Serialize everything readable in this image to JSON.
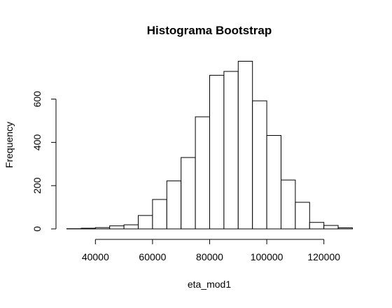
{
  "chart_data": {
    "type": "bar",
    "title": "Histograma Bootstrap",
    "xlabel": "eta_mod1",
    "ylabel": "Frequency",
    "bins": [
      {
        "start": 30000,
        "end": 35000,
        "value": 1
      },
      {
        "start": 35000,
        "end": 40000,
        "value": 3
      },
      {
        "start": 40000,
        "end": 45000,
        "value": 6
      },
      {
        "start": 45000,
        "end": 50000,
        "value": 14
      },
      {
        "start": 50000,
        "end": 55000,
        "value": 19
      },
      {
        "start": 55000,
        "end": 60000,
        "value": 62
      },
      {
        "start": 60000,
        "end": 65000,
        "value": 136
      },
      {
        "start": 65000,
        "end": 70000,
        "value": 222
      },
      {
        "start": 70000,
        "end": 75000,
        "value": 330
      },
      {
        "start": 75000,
        "end": 80000,
        "value": 518
      },
      {
        "start": 80000,
        "end": 85000,
        "value": 710
      },
      {
        "start": 85000,
        "end": 90000,
        "value": 728
      },
      {
        "start": 90000,
        "end": 95000,
        "value": 775
      },
      {
        "start": 95000,
        "end": 100000,
        "value": 592
      },
      {
        "start": 100000,
        "end": 105000,
        "value": 432
      },
      {
        "start": 105000,
        "end": 110000,
        "value": 226
      },
      {
        "start": 110000,
        "end": 115000,
        "value": 123
      },
      {
        "start": 115000,
        "end": 120000,
        "value": 30
      },
      {
        "start": 120000,
        "end": 125000,
        "value": 16
      },
      {
        "start": 125000,
        "end": 130000,
        "value": 5
      }
    ],
    "x_ticks": [
      40000,
      60000,
      80000,
      100000,
      120000
    ],
    "y_ticks": [
      0,
      200,
      400,
      600
    ],
    "xlim": [
      30000,
      130000
    ],
    "ylim": [
      0,
      775
    ],
    "grid": false,
    "legend": "none",
    "bar_fill": "#ffffff",
    "bar_stroke": "#000000"
  }
}
